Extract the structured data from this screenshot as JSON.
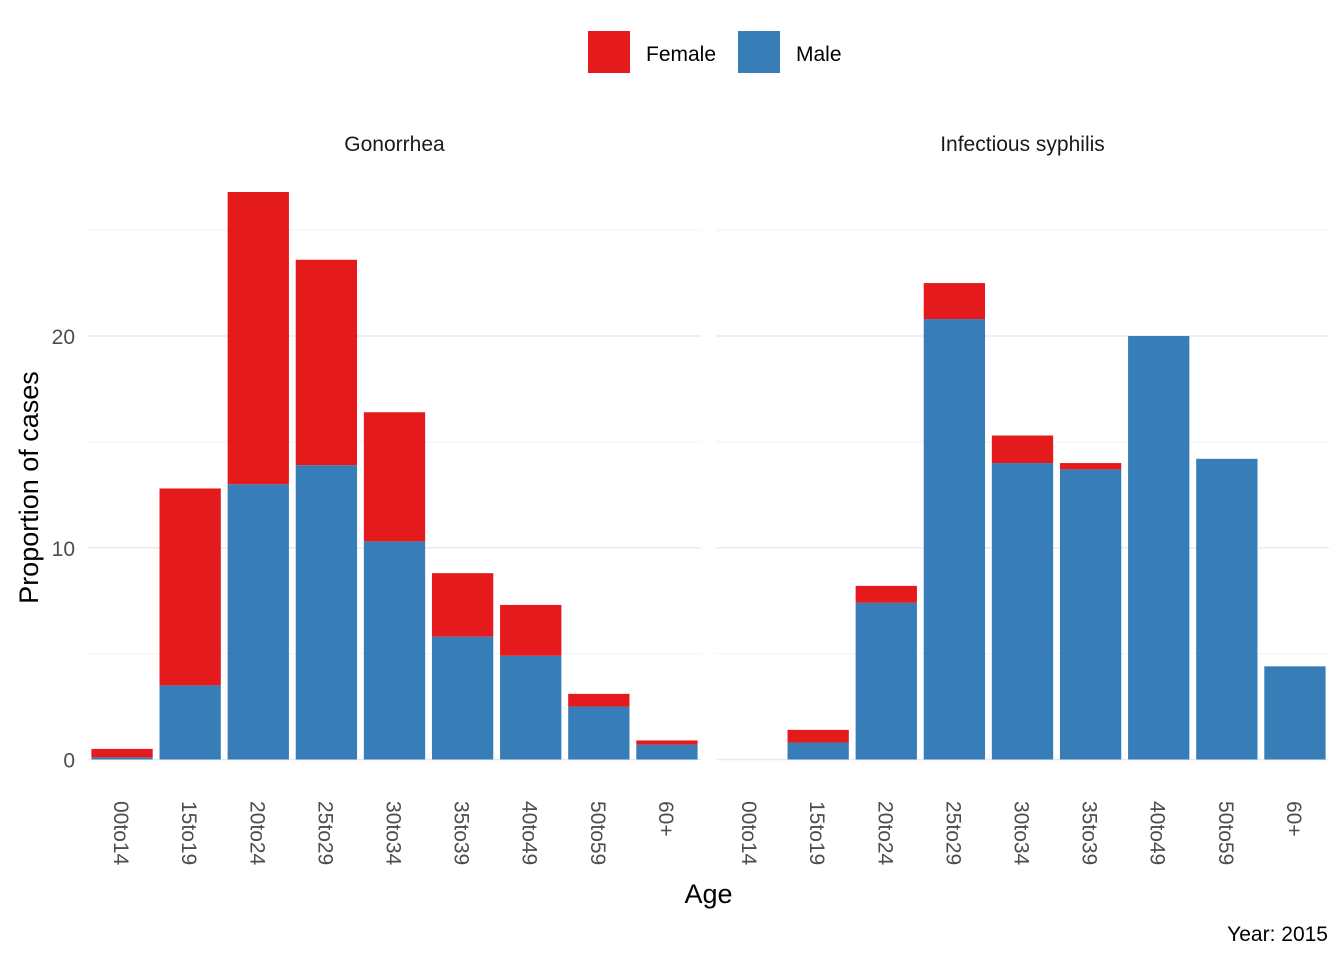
{
  "chart_data": {
    "type": "bar",
    "stacked": true,
    "xlabel": "Age",
    "ylabel": "Proportion of cases",
    "caption": "Year: 2015",
    "ylim": [
      0,
      28
    ],
    "yticks": [
      0,
      10,
      20
    ],
    "grid": true,
    "legend_position": "top",
    "colors": {
      "Female": "#E41A1C",
      "Male": "#377EB8"
    },
    "legend": [
      {
        "name": "Female",
        "color": "#E41A1C"
      },
      {
        "name": "Male",
        "color": "#377EB8"
      }
    ],
    "categories": [
      "00to14",
      "15to19",
      "20to24",
      "25to29",
      "30to34",
      "35to39",
      "40to49",
      "50to59",
      "60+"
    ],
    "panels": [
      {
        "title": "Gonorrhea",
        "series": [
          {
            "name": "Male",
            "values": [
              0.1,
              3.5,
              13.0,
              13.9,
              10.3,
              5.8,
              4.9,
              2.5,
              0.7
            ]
          },
          {
            "name": "Female",
            "values": [
              0.4,
              9.3,
              13.8,
              9.7,
              6.1,
              3.0,
              2.4,
              0.6,
              0.2
            ]
          }
        ]
      },
      {
        "title": "Infectious syphilis",
        "series": [
          {
            "name": "Male",
            "values": [
              0,
              0.8,
              7.4,
              20.8,
              14.0,
              13.7,
              20.0,
              14.2,
              4.4
            ]
          },
          {
            "name": "Female",
            "values": [
              0,
              0.6,
              0.8,
              1.7,
              1.3,
              0.3,
              0,
              0,
              0
            ]
          }
        ]
      }
    ]
  }
}
